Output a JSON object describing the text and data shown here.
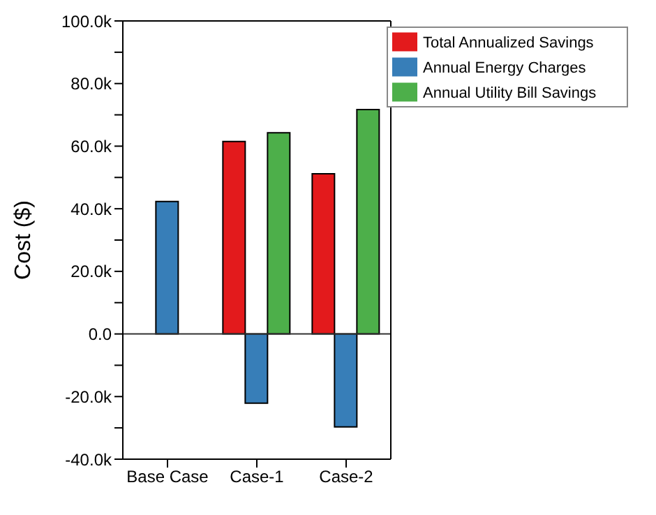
{
  "chart_data": {
    "type": "bar",
    "ylabel": "Cost ($)",
    "categories": [
      "Base Case",
      "Case-1",
      "Case-2"
    ],
    "series": [
      {
        "name": "Total Annualized Savings",
        "color": "#e31a1c",
        "values": [
          null,
          61500,
          51200
        ]
      },
      {
        "name": "Annual Energy Charges",
        "color": "#377eb8",
        "values": [
          42300,
          -22100,
          -29700
        ]
      },
      {
        "name": "Annual Utility Bill Savings",
        "color": "#4daf4a",
        "values": [
          null,
          64300,
          71700
        ]
      }
    ],
    "ylim": [
      -40000,
      100000
    ],
    "yticks": [
      {
        "value": -40000,
        "label": "-40.0k"
      },
      {
        "value": -30000,
        "label": null
      },
      {
        "value": -20000,
        "label": "-20.0k"
      },
      {
        "value": -10000,
        "label": null
      },
      {
        "value": 0,
        "label": "0.0"
      },
      {
        "value": 10000,
        "label": null
      },
      {
        "value": 20000,
        "label": "20.0k"
      },
      {
        "value": 30000,
        "label": null
      },
      {
        "value": 40000,
        "label": "40.0k"
      },
      {
        "value": 50000,
        "label": null
      },
      {
        "value": 60000,
        "label": "60.0k"
      },
      {
        "value": 70000,
        "label": null
      },
      {
        "value": 80000,
        "label": "80.0k"
      },
      {
        "value": 90000,
        "label": null
      },
      {
        "value": 100000,
        "label": "100.0k"
      }
    ],
    "ref_lines": [
      {
        "axis": "y",
        "value": 0,
        "color": "#333333"
      }
    ],
    "legend": "top right",
    "grid": false
  }
}
